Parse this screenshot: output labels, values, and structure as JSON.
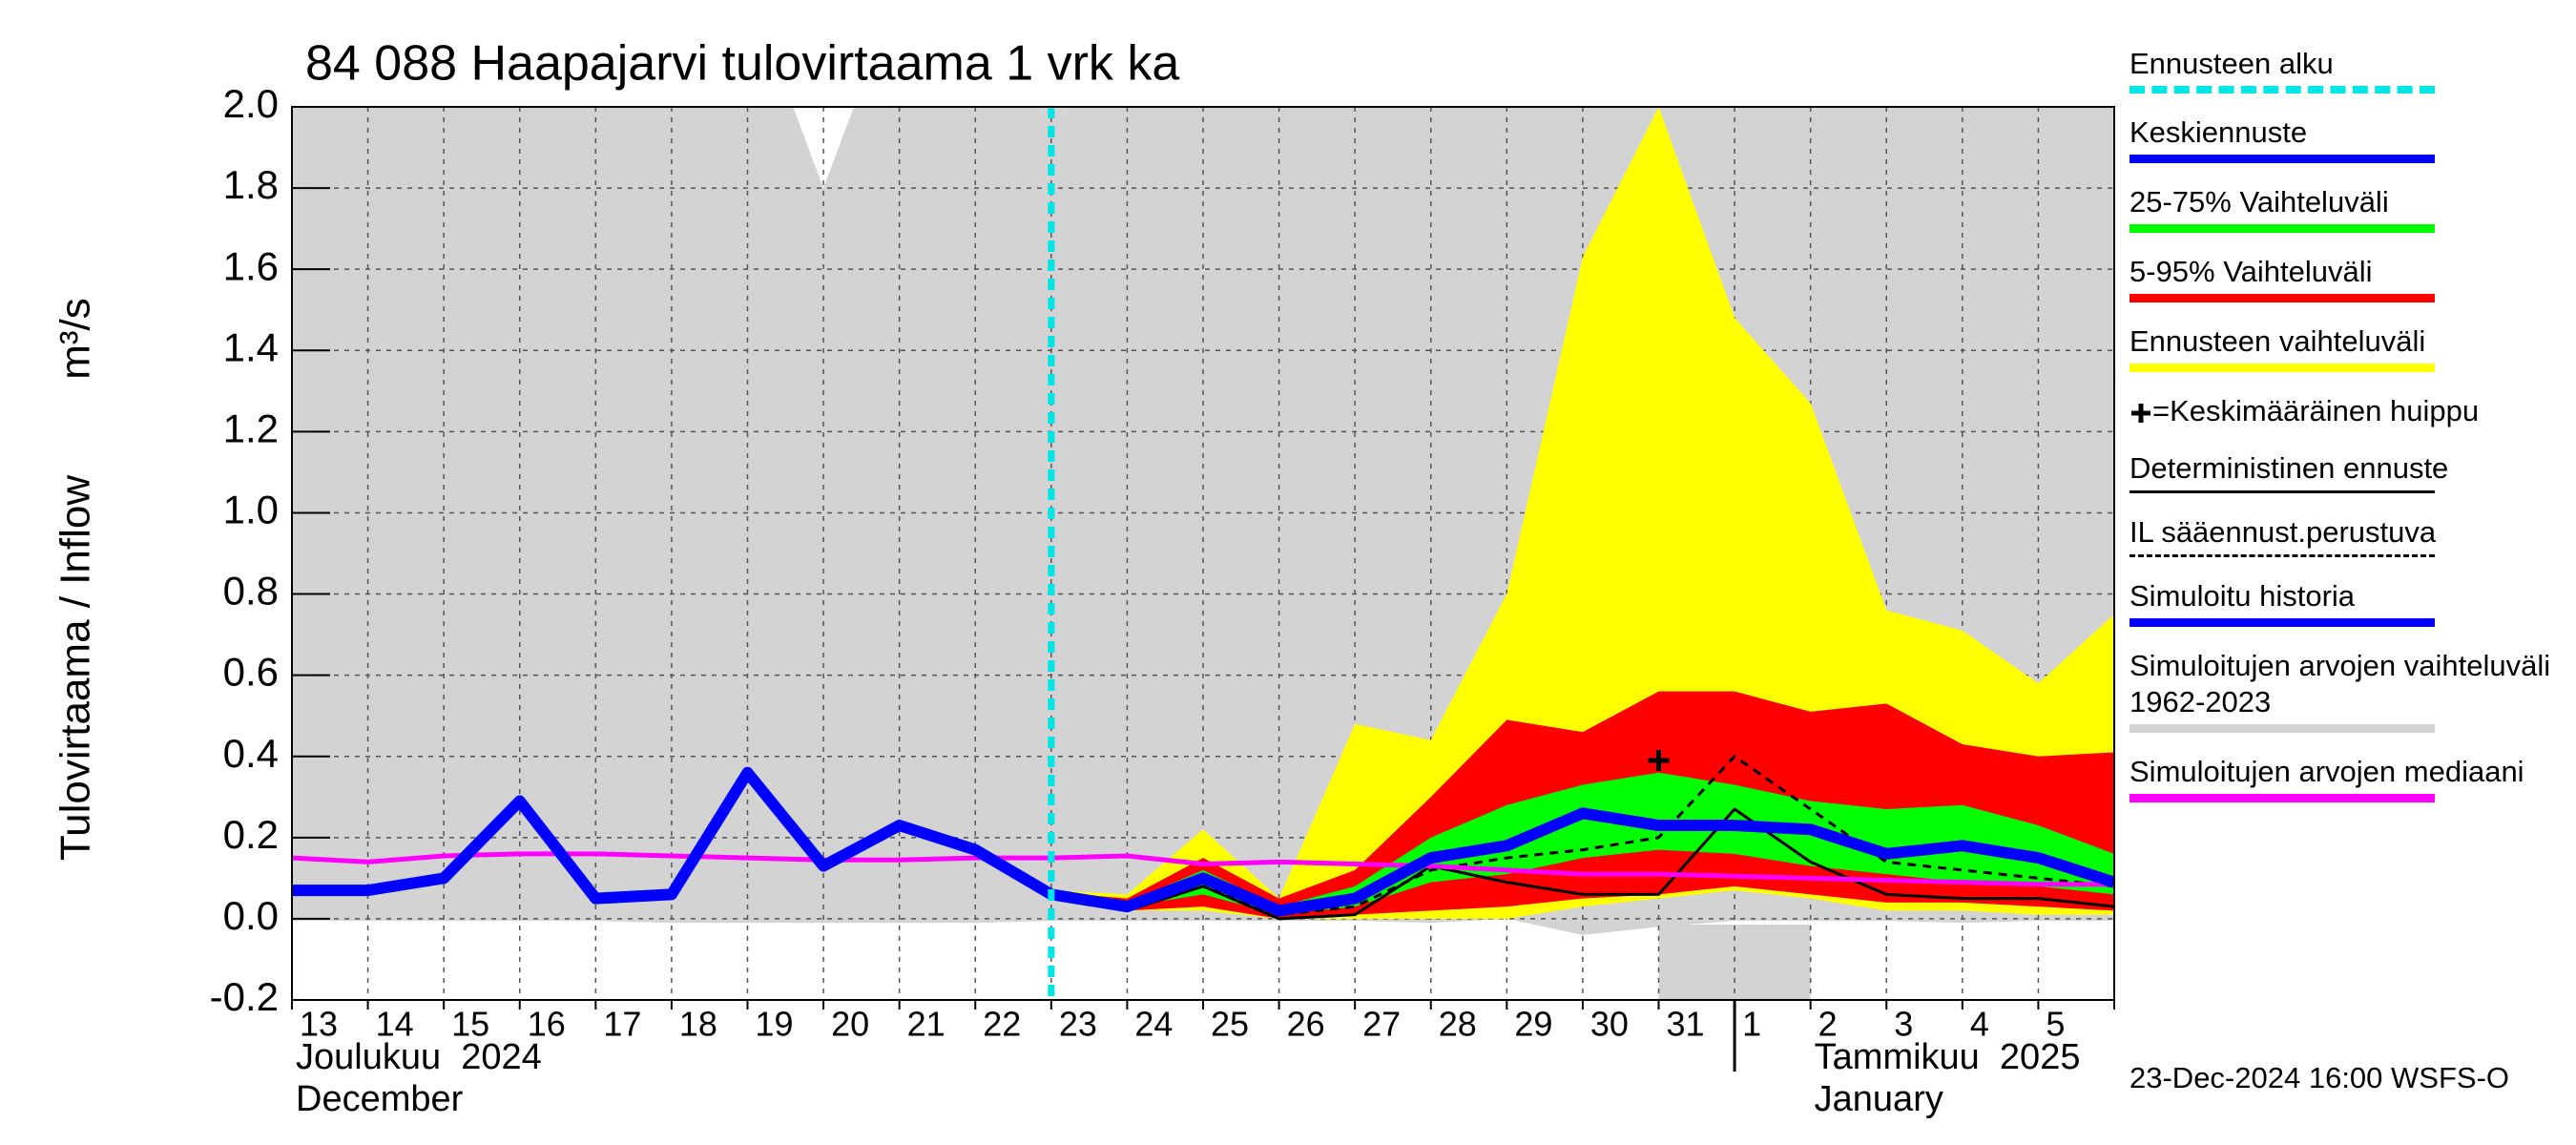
{
  "chart_data": {
    "type": "line",
    "title": "84 088 Haapajarvi tulovirtaama 1 vrk ka",
    "y_label": "Tulovirtaama / Inflow",
    "y_unit": "m³/s",
    "categories": [
      "13",
      "14",
      "15",
      "16",
      "17",
      "18",
      "19",
      "20",
      "21",
      "22",
      "23",
      "24",
      "25",
      "26",
      "27",
      "28",
      "29",
      "30",
      "31",
      "1",
      "2",
      "3",
      "4",
      "5",
      null
    ],
    "x_months": [
      {
        "name": "Joulukuu  2024",
        "name_en": "December"
      },
      {
        "name": "Tammikuu  2025",
        "name_en": "January"
      }
    ],
    "ylim": [
      -0.2,
      2.0
    ],
    "yticks": [
      -0.2,
      {
        "value": 0,
        "label": "0.0"
      },
      0.2,
      0.4,
      0.6,
      0.8,
      {
        "value": 1,
        "label": "1.0"
      },
      1.2,
      1.4,
      1.6,
      1.8,
      {
        "value": 2,
        "label": "2.0"
      }
    ],
    "grid": true,
    "series": [
      {
        "name": "Ennusteen alku",
        "color": "#00e5e5",
        "style": "forecast-start"
      },
      {
        "name": "Keskiennuste",
        "color": "#0000ff",
        "style": "line",
        "width": 12,
        "values": [
          null,
          null,
          null,
          null,
          null,
          null,
          null,
          null,
          null,
          null,
          0.06,
          0.03,
          0.1,
          0.02,
          0.05,
          0.15,
          0.18,
          0.26,
          0.23,
          0.23,
          0.22,
          0.16,
          0.18,
          0.15,
          0.09
        ]
      },
      {
        "name": "25-75% Vaihteluväli",
        "color": "#00ff00",
        "style": "band",
        "lower": [
          null,
          null,
          null,
          null,
          null,
          null,
          null,
          null,
          null,
          null,
          0.06,
          0.03,
          0.06,
          0.01,
          0.03,
          0.09,
          0.11,
          0.15,
          0.17,
          0.16,
          0.13,
          0.11,
          0.09,
          0.08,
          0.06
        ],
        "upper": [
          null,
          null,
          null,
          null,
          null,
          null,
          null,
          null,
          null,
          null,
          0.065,
          0.04,
          0.12,
          0.03,
          0.08,
          0.2,
          0.28,
          0.33,
          0.36,
          0.33,
          0.29,
          0.27,
          0.28,
          0.23,
          0.16
        ]
      },
      {
        "name": "5-95% Vaihteluväli",
        "color": "#ff0000",
        "style": "band",
        "lower": [
          null,
          null,
          null,
          null,
          null,
          null,
          null,
          null,
          null,
          null,
          0.055,
          0.02,
          0.03,
          0.0,
          0.01,
          0.02,
          0.03,
          0.05,
          0.06,
          0.08,
          0.06,
          0.04,
          0.04,
          0.03,
          0.02
        ],
        "upper": [
          null,
          null,
          null,
          null,
          null,
          null,
          null,
          null,
          null,
          null,
          0.065,
          0.05,
          0.15,
          0.05,
          0.12,
          0.3,
          0.49,
          0.46,
          0.56,
          0.56,
          0.51,
          0.53,
          0.43,
          0.4,
          0.41
        ]
      },
      {
        "name": "Ennusteen vaihteluväli",
        "color": "#ffff00",
        "style": "band",
        "lower": [
          null,
          null,
          null,
          null,
          null,
          null,
          null,
          null,
          null,
          null,
          0.05,
          0.02,
          0.02,
          0.0,
          0.0,
          0.0,
          0.0,
          0.03,
          0.05,
          0.07,
          0.05,
          0.02,
          0.02,
          0.01,
          0.01
        ],
        "upper": [
          null,
          null,
          null,
          null,
          null,
          null,
          null,
          null,
          null,
          null,
          0.07,
          0.06,
          0.22,
          0.05,
          0.48,
          0.44,
          0.8,
          1.63,
          2.0,
          1.48,
          1.27,
          0.76,
          0.71,
          0.58,
          0.75
        ]
      },
      {
        "name": "=Keskimääräinen huippu",
        "color": "#000000",
        "style": "peak",
        "values": [
          null,
          null,
          null,
          null,
          null,
          null,
          null,
          null,
          null,
          null,
          null,
          null,
          null,
          null,
          null,
          null,
          null,
          null,
          0.39,
          null,
          null,
          null,
          null,
          null,
          null
        ]
      },
      {
        "name": "Deterministinen ennuste",
        "color": "#000000",
        "style": "line",
        "width": 3,
        "values": [
          null,
          null,
          null,
          null,
          null,
          null,
          null,
          null,
          null,
          null,
          0.06,
          0.02,
          0.08,
          0.0,
          0.01,
          0.13,
          0.09,
          0.06,
          0.06,
          0.27,
          0.14,
          0.06,
          0.05,
          0.05,
          0.03
        ]
      },
      {
        "name": "IL sääennust.perustuva",
        "color": "#000000",
        "style": "dashed",
        "width": 3,
        "values": [
          null,
          null,
          null,
          null,
          null,
          null,
          null,
          null,
          null,
          null,
          0.06,
          0.02,
          0.08,
          0.01,
          0.03,
          0.12,
          0.15,
          0.17,
          0.2,
          0.4,
          0.27,
          0.14,
          0.12,
          0.1,
          0.08
        ]
      },
      {
        "name": "Simuloitu historia",
        "color": "#0000ff",
        "style": "line",
        "width": 12,
        "values": [
          0.07,
          0.07,
          0.1,
          0.29,
          0.05,
          0.06,
          0.36,
          0.13,
          0.23,
          0.17,
          0.06,
          null,
          null,
          null,
          null,
          null,
          null,
          null,
          null,
          null,
          null,
          null,
          null,
          null,
          null
        ]
      },
      {
        "name": "Simuloitujen arvojen vaihteluväli 1962-2023",
        "color": "#d3d3d3",
        "style": "band",
        "lower": [
          -0.005,
          -0.005,
          -0.005,
          -0.005,
          -0.005,
          -0.01,
          -0.01,
          -0.01,
          -0.01,
          -0.01,
          -0.005,
          -0.005,
          -0.005,
          -0.005,
          -0.005,
          -0.01,
          0.0,
          -0.04,
          -0.02,
          -0.005,
          -0.005,
          -0.005,
          -0.01,
          -0.005,
          -0.005
        ],
        "upper": [
          2.5,
          2.5,
          2.5,
          2.5,
          2.5,
          2.5,
          2.3,
          1.8,
          2.3,
          2.5,
          2.5,
          2.5,
          2.5,
          2.5,
          2.5,
          2.5,
          2.5,
          2.5,
          2.5,
          2.5,
          2.5,
          2.5,
          2.5,
          2.5,
          2.5
        ]
      },
      {
        "name": "Simuloitujen arvojen mediaani",
        "color": "#ff00ff",
        "style": "line",
        "width": 5,
        "values": [
          0.15,
          0.14,
          0.155,
          0.16,
          0.16,
          0.155,
          0.15,
          0.145,
          0.145,
          0.15,
          0.15,
          0.155,
          0.135,
          0.14,
          0.135,
          0.13,
          0.12,
          0.11,
          0.11,
          0.105,
          0.1,
          0.095,
          0.09,
          0.085,
          0.085
        ]
      }
    ],
    "footer": "23-Dec-2024 16:00 WSFS-O"
  }
}
